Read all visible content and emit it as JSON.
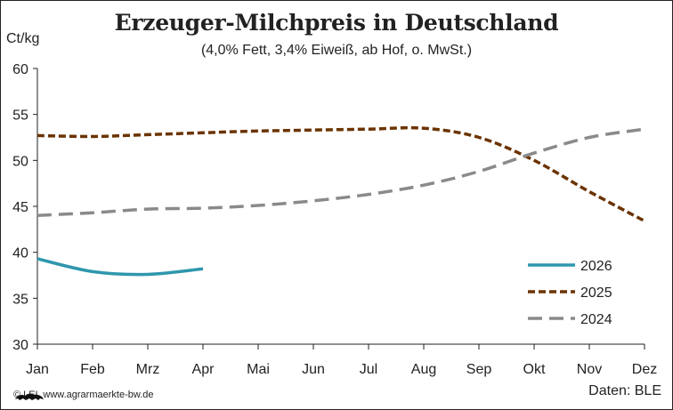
{
  "title": "Erzeuger-Milchpreis in Deutschland",
  "subtitle": "(4,0% Fett, 3,4% Eiweiß, ab Hof, o. MwSt.)",
  "unit_label": "Ct/kg",
  "footer": {
    "credit": "© LEL www.agrarmaerkte-bw.de",
    "source": "Daten: BLE",
    "logo_icon": "state-lion-logo-icon"
  },
  "chart_data": {
    "type": "line",
    "title": "Erzeuger-Milchpreis in Deutschland",
    "subtitle": "(4,0% Fett, 3,4% Eiweiß, ab Hof, o. MwSt.)",
    "ylabel": "Ct/kg",
    "xlabel": "",
    "categories": [
      "Jan",
      "Feb",
      "Mrz",
      "Apr",
      "Mai",
      "Jun",
      "Jul",
      "Aug",
      "Sep",
      "Okt",
      "Nov",
      "Dez"
    ],
    "yticks": [
      30,
      35,
      40,
      45,
      50,
      55,
      60
    ],
    "ylim": [
      30,
      60
    ],
    "grid": false,
    "legend_position": "bottom-right",
    "series": [
      {
        "name": "2026",
        "color": "#2e97ad",
        "dash": "solid",
        "values": [
          39.3,
          37.9,
          37.6,
          38.2,
          null,
          null,
          null,
          null,
          null,
          null,
          null,
          null
        ]
      },
      {
        "name": "2025",
        "color": "#6b3300",
        "dash": "short-dash",
        "values": [
          52.7,
          52.6,
          52.8,
          53.0,
          53.2,
          53.3,
          53.4,
          53.5,
          52.5,
          50.0,
          46.6,
          43.4
        ]
      },
      {
        "name": "2024",
        "color": "#8a8a8a",
        "dash": "long-dash",
        "values": [
          44.0,
          44.3,
          44.7,
          44.8,
          45.1,
          45.6,
          46.3,
          47.3,
          48.8,
          50.8,
          52.5,
          53.4
        ]
      }
    ]
  }
}
